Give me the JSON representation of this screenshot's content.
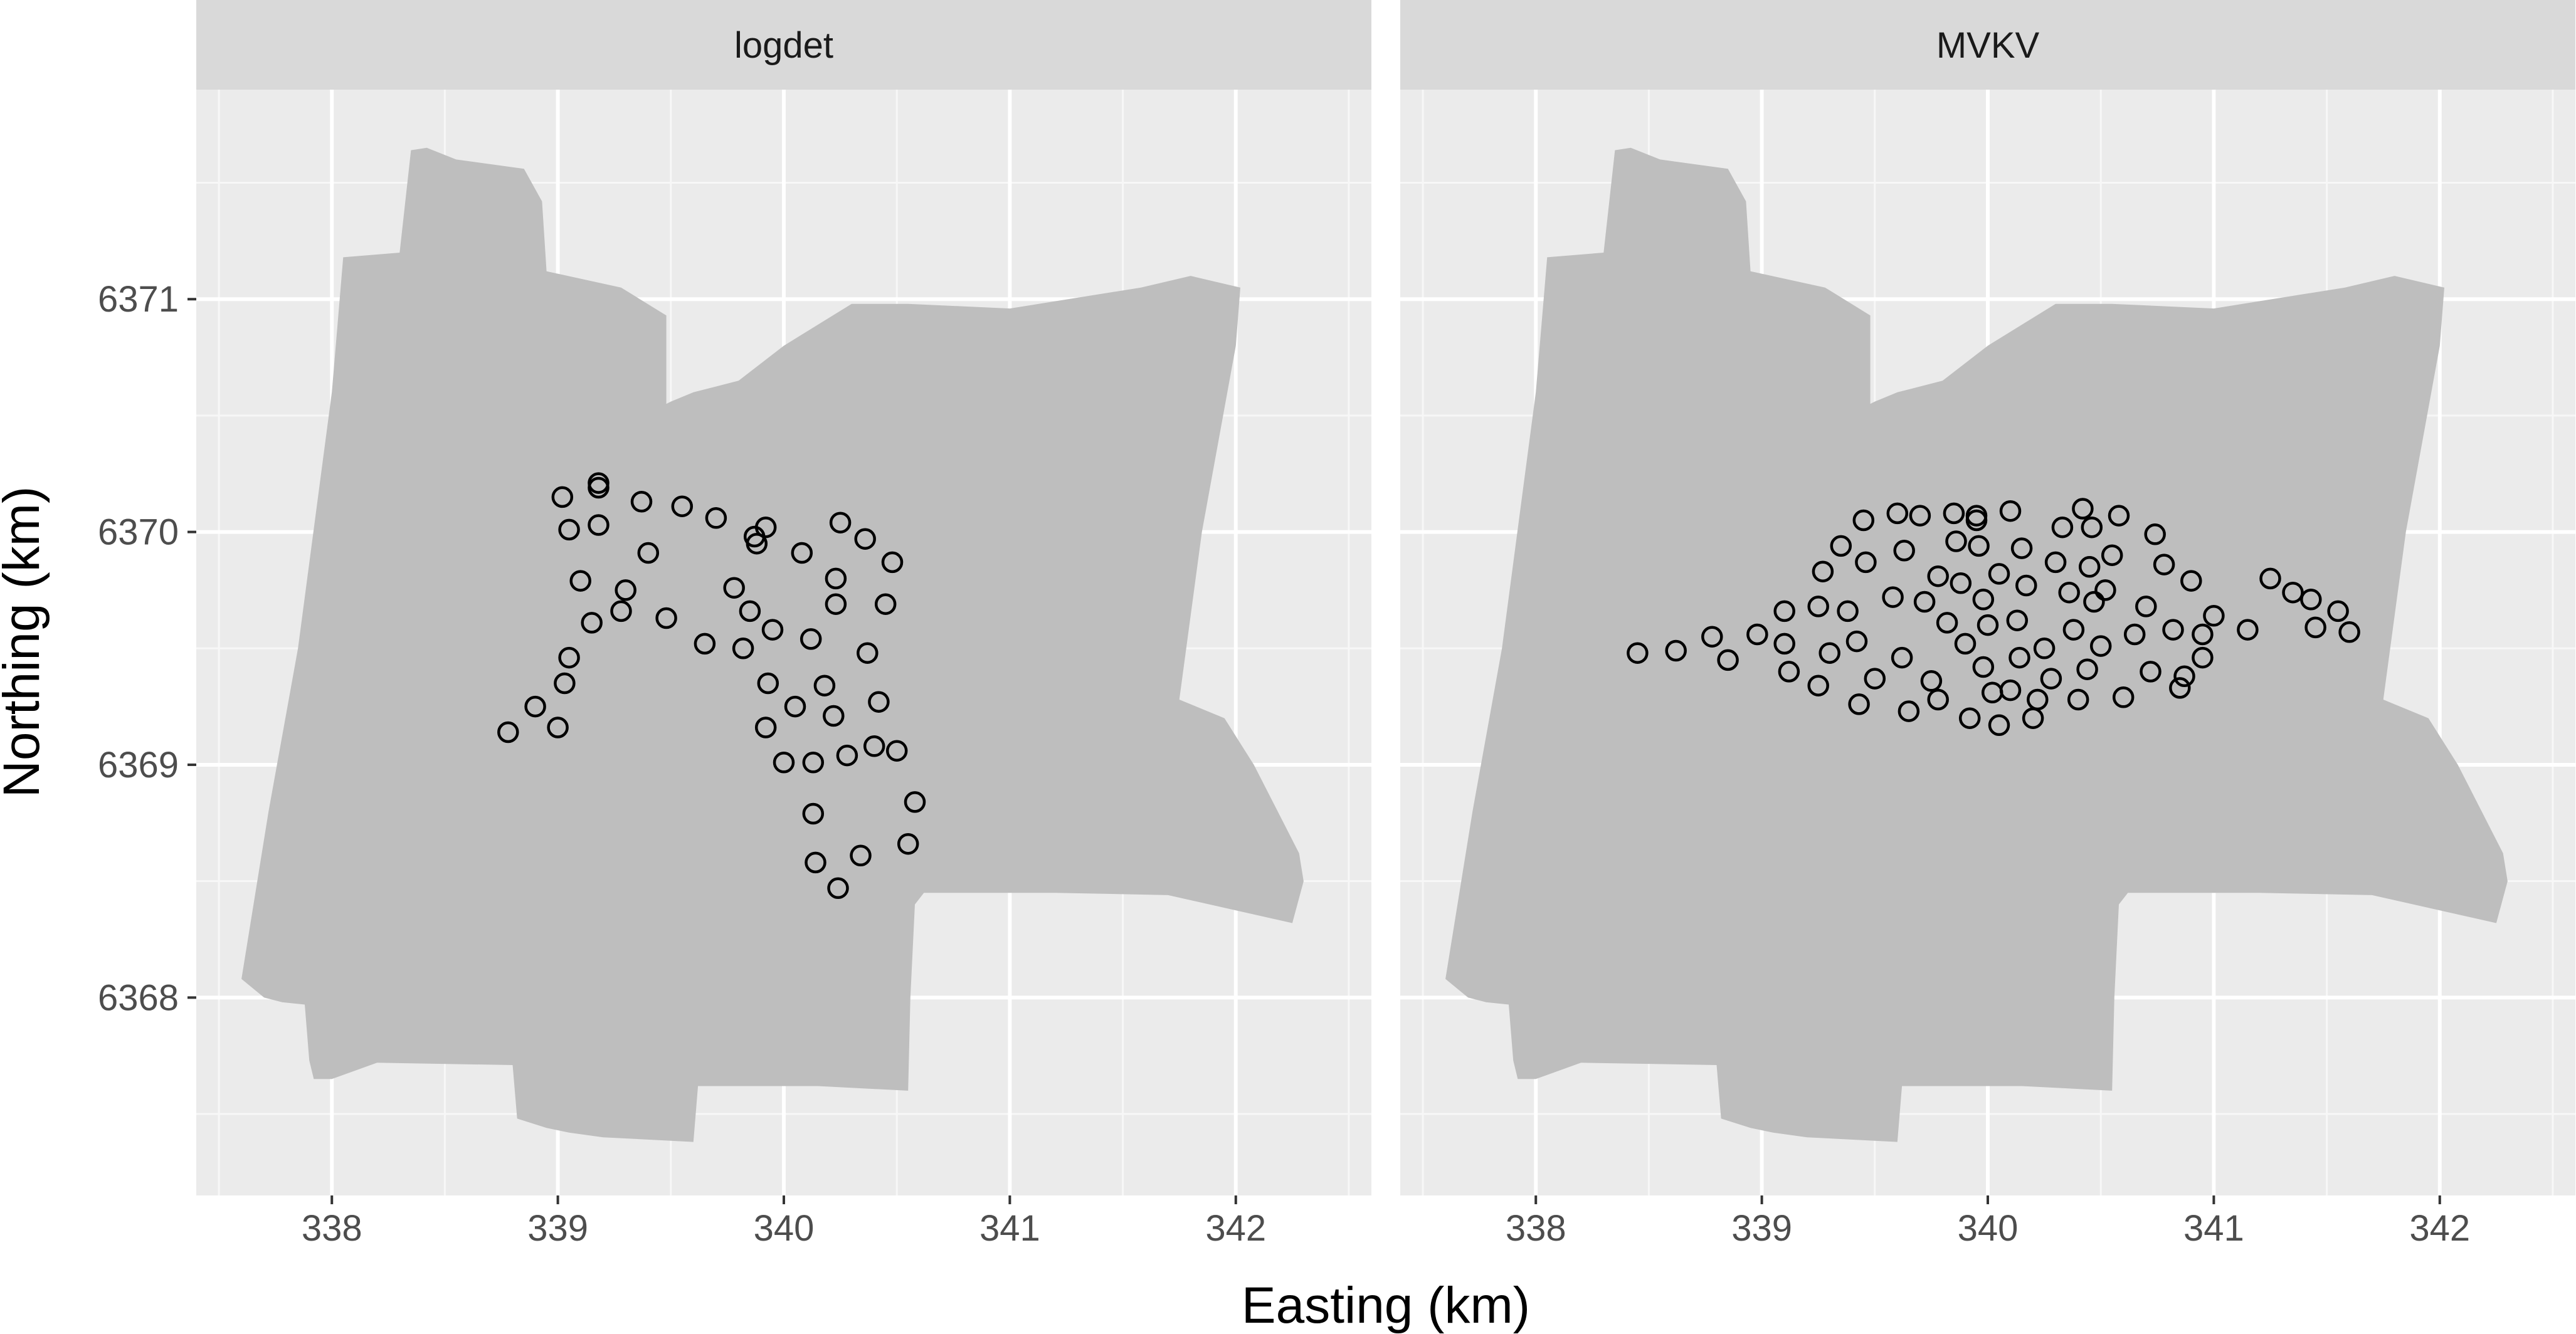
{
  "chart_data": {
    "type": "scatter",
    "xlabel": "Easting (km)",
    "ylabel": "Northing (km)",
    "xlim": [
      337.4,
      342.6
    ],
    "ylim": [
      6367.15,
      6371.9
    ],
    "x_ticks": [
      338,
      339,
      340,
      341,
      342
    ],
    "y_ticks": [
      6368,
      6369,
      6370,
      6371
    ],
    "grid": true,
    "study_area": {
      "fill": "#bebebe",
      "outline": [
        [
          337.6,
          6368.08
        ],
        [
          337.7,
          6368.0
        ],
        [
          337.78,
          6367.98
        ],
        [
          337.88,
          6367.97
        ],
        [
          337.9,
          6367.73
        ],
        [
          337.92,
          6367.65
        ],
        [
          338.0,
          6367.65
        ],
        [
          338.2,
          6367.72
        ],
        [
          338.8,
          6367.71
        ],
        [
          338.82,
          6367.48
        ],
        [
          338.95,
          6367.44
        ],
        [
          339.05,
          6367.42
        ],
        [
          339.2,
          6367.4
        ],
        [
          339.6,
          6367.38
        ],
        [
          339.62,
          6367.62
        ],
        [
          339.75,
          6367.62
        ],
        [
          340.15,
          6367.62
        ],
        [
          340.55,
          6367.6
        ],
        [
          340.56,
          6368.0
        ],
        [
          340.58,
          6368.4
        ],
        [
          340.62,
          6368.45
        ],
        [
          341.2,
          6368.45
        ],
        [
          341.7,
          6368.44
        ],
        [
          342.25,
          6368.32
        ],
        [
          342.3,
          6368.5
        ],
        [
          342.28,
          6368.62
        ],
        [
          342.08,
          6369.0
        ],
        [
          341.95,
          6369.2
        ],
        [
          341.75,
          6369.28
        ],
        [
          341.85,
          6370.0
        ],
        [
          342.0,
          6370.8
        ],
        [
          342.02,
          6371.05
        ],
        [
          341.8,
          6371.1
        ],
        [
          341.58,
          6371.05
        ],
        [
          341.0,
          6370.96
        ],
        [
          340.55,
          6370.98
        ],
        [
          340.3,
          6370.98
        ],
        [
          340.0,
          6370.8
        ],
        [
          339.8,
          6370.65
        ],
        [
          339.6,
          6370.6
        ],
        [
          339.5,
          6370.56
        ],
        [
          339.48,
          6370.55
        ],
        [
          339.48,
          6370.93
        ],
        [
          339.28,
          6371.05
        ],
        [
          338.95,
          6371.12
        ],
        [
          338.93,
          6371.42
        ],
        [
          338.85,
          6371.56
        ],
        [
          338.55,
          6371.6
        ],
        [
          338.42,
          6371.65
        ],
        [
          338.35,
          6371.64
        ],
        [
          338.3,
          6371.2
        ],
        [
          338.05,
          6371.18
        ],
        [
          338.0,
          6370.6
        ],
        [
          337.85,
          6369.5
        ],
        [
          337.72,
          6368.8
        ]
      ]
    },
    "series": [
      {
        "name": "logdet",
        "points": [
          [
            339.02,
            6370.15
          ],
          [
            339.18,
            6370.21
          ],
          [
            339.18,
            6370.19
          ],
          [
            339.37,
            6370.13
          ],
          [
            339.55,
            6370.11
          ],
          [
            339.7,
            6370.06
          ],
          [
            339.92,
            6370.02
          ],
          [
            340.25,
            6370.04
          ],
          [
            340.36,
            6369.97
          ],
          [
            339.05,
            6370.01
          ],
          [
            339.18,
            6370.03
          ],
          [
            339.87,
            6369.98
          ],
          [
            339.88,
            6369.95
          ],
          [
            339.4,
            6369.91
          ],
          [
            340.08,
            6369.91
          ],
          [
            340.48,
            6369.87
          ],
          [
            339.1,
            6369.79
          ],
          [
            339.3,
            6369.75
          ],
          [
            339.78,
            6369.76
          ],
          [
            340.23,
            6369.8
          ],
          [
            339.28,
            6369.66
          ],
          [
            339.85,
            6369.66
          ],
          [
            340.23,
            6369.69
          ],
          [
            340.45,
            6369.69
          ],
          [
            339.15,
            6369.61
          ],
          [
            339.48,
            6369.63
          ],
          [
            339.95,
            6369.58
          ],
          [
            339.65,
            6369.52
          ],
          [
            339.82,
            6369.5
          ],
          [
            340.12,
            6369.54
          ],
          [
            340.37,
            6369.48
          ],
          [
            339.05,
            6369.46
          ],
          [
            339.93,
            6369.35
          ],
          [
            340.05,
            6369.25
          ],
          [
            340.18,
            6369.34
          ],
          [
            339.03,
            6369.35
          ],
          [
            338.9,
            6369.25
          ],
          [
            340.42,
            6369.27
          ],
          [
            339.0,
            6369.16
          ],
          [
            339.92,
            6369.16
          ],
          [
            340.22,
            6369.21
          ],
          [
            338.78,
            6369.14
          ],
          [
            340.4,
            6369.08
          ],
          [
            340.5,
            6369.06
          ],
          [
            340.0,
            6369.01
          ],
          [
            340.13,
            6369.01
          ],
          [
            340.28,
            6369.04
          ],
          [
            340.58,
            6368.84
          ],
          [
            340.13,
            6368.79
          ],
          [
            340.14,
            6368.58
          ],
          [
            340.34,
            6368.61
          ],
          [
            340.55,
            6368.66
          ],
          [
            340.24,
            6368.47
          ]
        ]
      },
      {
        "name": "MVKV",
        "points": [
          [
            338.45,
            6369.48
          ],
          [
            338.62,
            6369.49
          ],
          [
            338.78,
            6369.55
          ],
          [
            338.85,
            6369.45
          ],
          [
            338.98,
            6369.56
          ],
          [
            339.1,
            6369.66
          ],
          [
            339.1,
            6369.52
          ],
          [
            339.12,
            6369.4
          ],
          [
            339.25,
            6369.34
          ],
          [
            339.25,
            6369.68
          ],
          [
            339.27,
            6369.83
          ],
          [
            339.3,
            6369.48
          ],
          [
            339.35,
            6369.94
          ],
          [
            339.38,
            6369.66
          ],
          [
            339.42,
            6369.53
          ],
          [
            339.43,
            6369.26
          ],
          [
            339.45,
            6370.05
          ],
          [
            339.46,
            6369.87
          ],
          [
            339.5,
            6369.37
          ],
          [
            339.58,
            6369.72
          ],
          [
            339.62,
            6369.46
          ],
          [
            339.6,
            6370.08
          ],
          [
            339.63,
            6369.92
          ],
          [
            339.65,
            6369.23
          ],
          [
            339.7,
            6370.07
          ],
          [
            339.72,
            6369.7
          ],
          [
            339.75,
            6369.36
          ],
          [
            339.78,
            6369.81
          ],
          [
            339.78,
            6369.28
          ],
          [
            339.82,
            6369.61
          ],
          [
            339.85,
            6370.08
          ],
          [
            339.86,
            6369.96
          ],
          [
            339.88,
            6369.78
          ],
          [
            339.9,
            6369.52
          ],
          [
            339.92,
            6369.2
          ],
          [
            339.95,
            6370.07
          ],
          [
            339.95,
            6370.05
          ],
          [
            339.96,
            6369.94
          ],
          [
            339.98,
            6369.71
          ],
          [
            339.98,
            6369.42
          ],
          [
            340.0,
            6369.6
          ],
          [
            340.02,
            6369.31
          ],
          [
            340.05,
            6369.82
          ],
          [
            340.05,
            6369.17
          ],
          [
            340.1,
            6370.09
          ],
          [
            340.1,
            6369.32
          ],
          [
            340.13,
            6369.62
          ],
          [
            340.14,
            6369.46
          ],
          [
            340.15,
            6369.93
          ],
          [
            340.17,
            6369.77
          ],
          [
            340.2,
            6369.2
          ],
          [
            340.22,
            6369.28
          ],
          [
            340.25,
            6369.5
          ],
          [
            340.28,
            6369.37
          ],
          [
            340.3,
            6369.87
          ],
          [
            340.33,
            6370.02
          ],
          [
            340.36,
            6369.74
          ],
          [
            340.38,
            6369.58
          ],
          [
            340.4,
            6369.28
          ],
          [
            340.42,
            6370.1
          ],
          [
            340.44,
            6369.41
          ],
          [
            340.45,
            6369.85
          ],
          [
            340.46,
            6370.02
          ],
          [
            340.47,
            6369.7
          ],
          [
            340.5,
            6369.51
          ],
          [
            340.52,
            6369.75
          ],
          [
            340.55,
            6369.9
          ],
          [
            340.58,
            6370.07
          ],
          [
            340.6,
            6369.29
          ],
          [
            340.65,
            6369.56
          ],
          [
            340.7,
            6369.68
          ],
          [
            340.72,
            6369.4
          ],
          [
            340.74,
            6369.99
          ],
          [
            340.78,
            6369.86
          ],
          [
            340.82,
            6369.58
          ],
          [
            340.85,
            6369.33
          ],
          [
            340.87,
            6369.38
          ],
          [
            340.9,
            6369.79
          ],
          [
            340.95,
            6369.56
          ],
          [
            340.95,
            6369.46
          ],
          [
            341.0,
            6369.64
          ],
          [
            341.15,
            6369.58
          ],
          [
            341.25,
            6369.8
          ],
          [
            341.35,
            6369.74
          ],
          [
            341.43,
            6369.71
          ],
          [
            341.45,
            6369.59
          ],
          [
            341.55,
            6369.66
          ],
          [
            341.6,
            6369.57
          ]
        ]
      }
    ]
  }
}
